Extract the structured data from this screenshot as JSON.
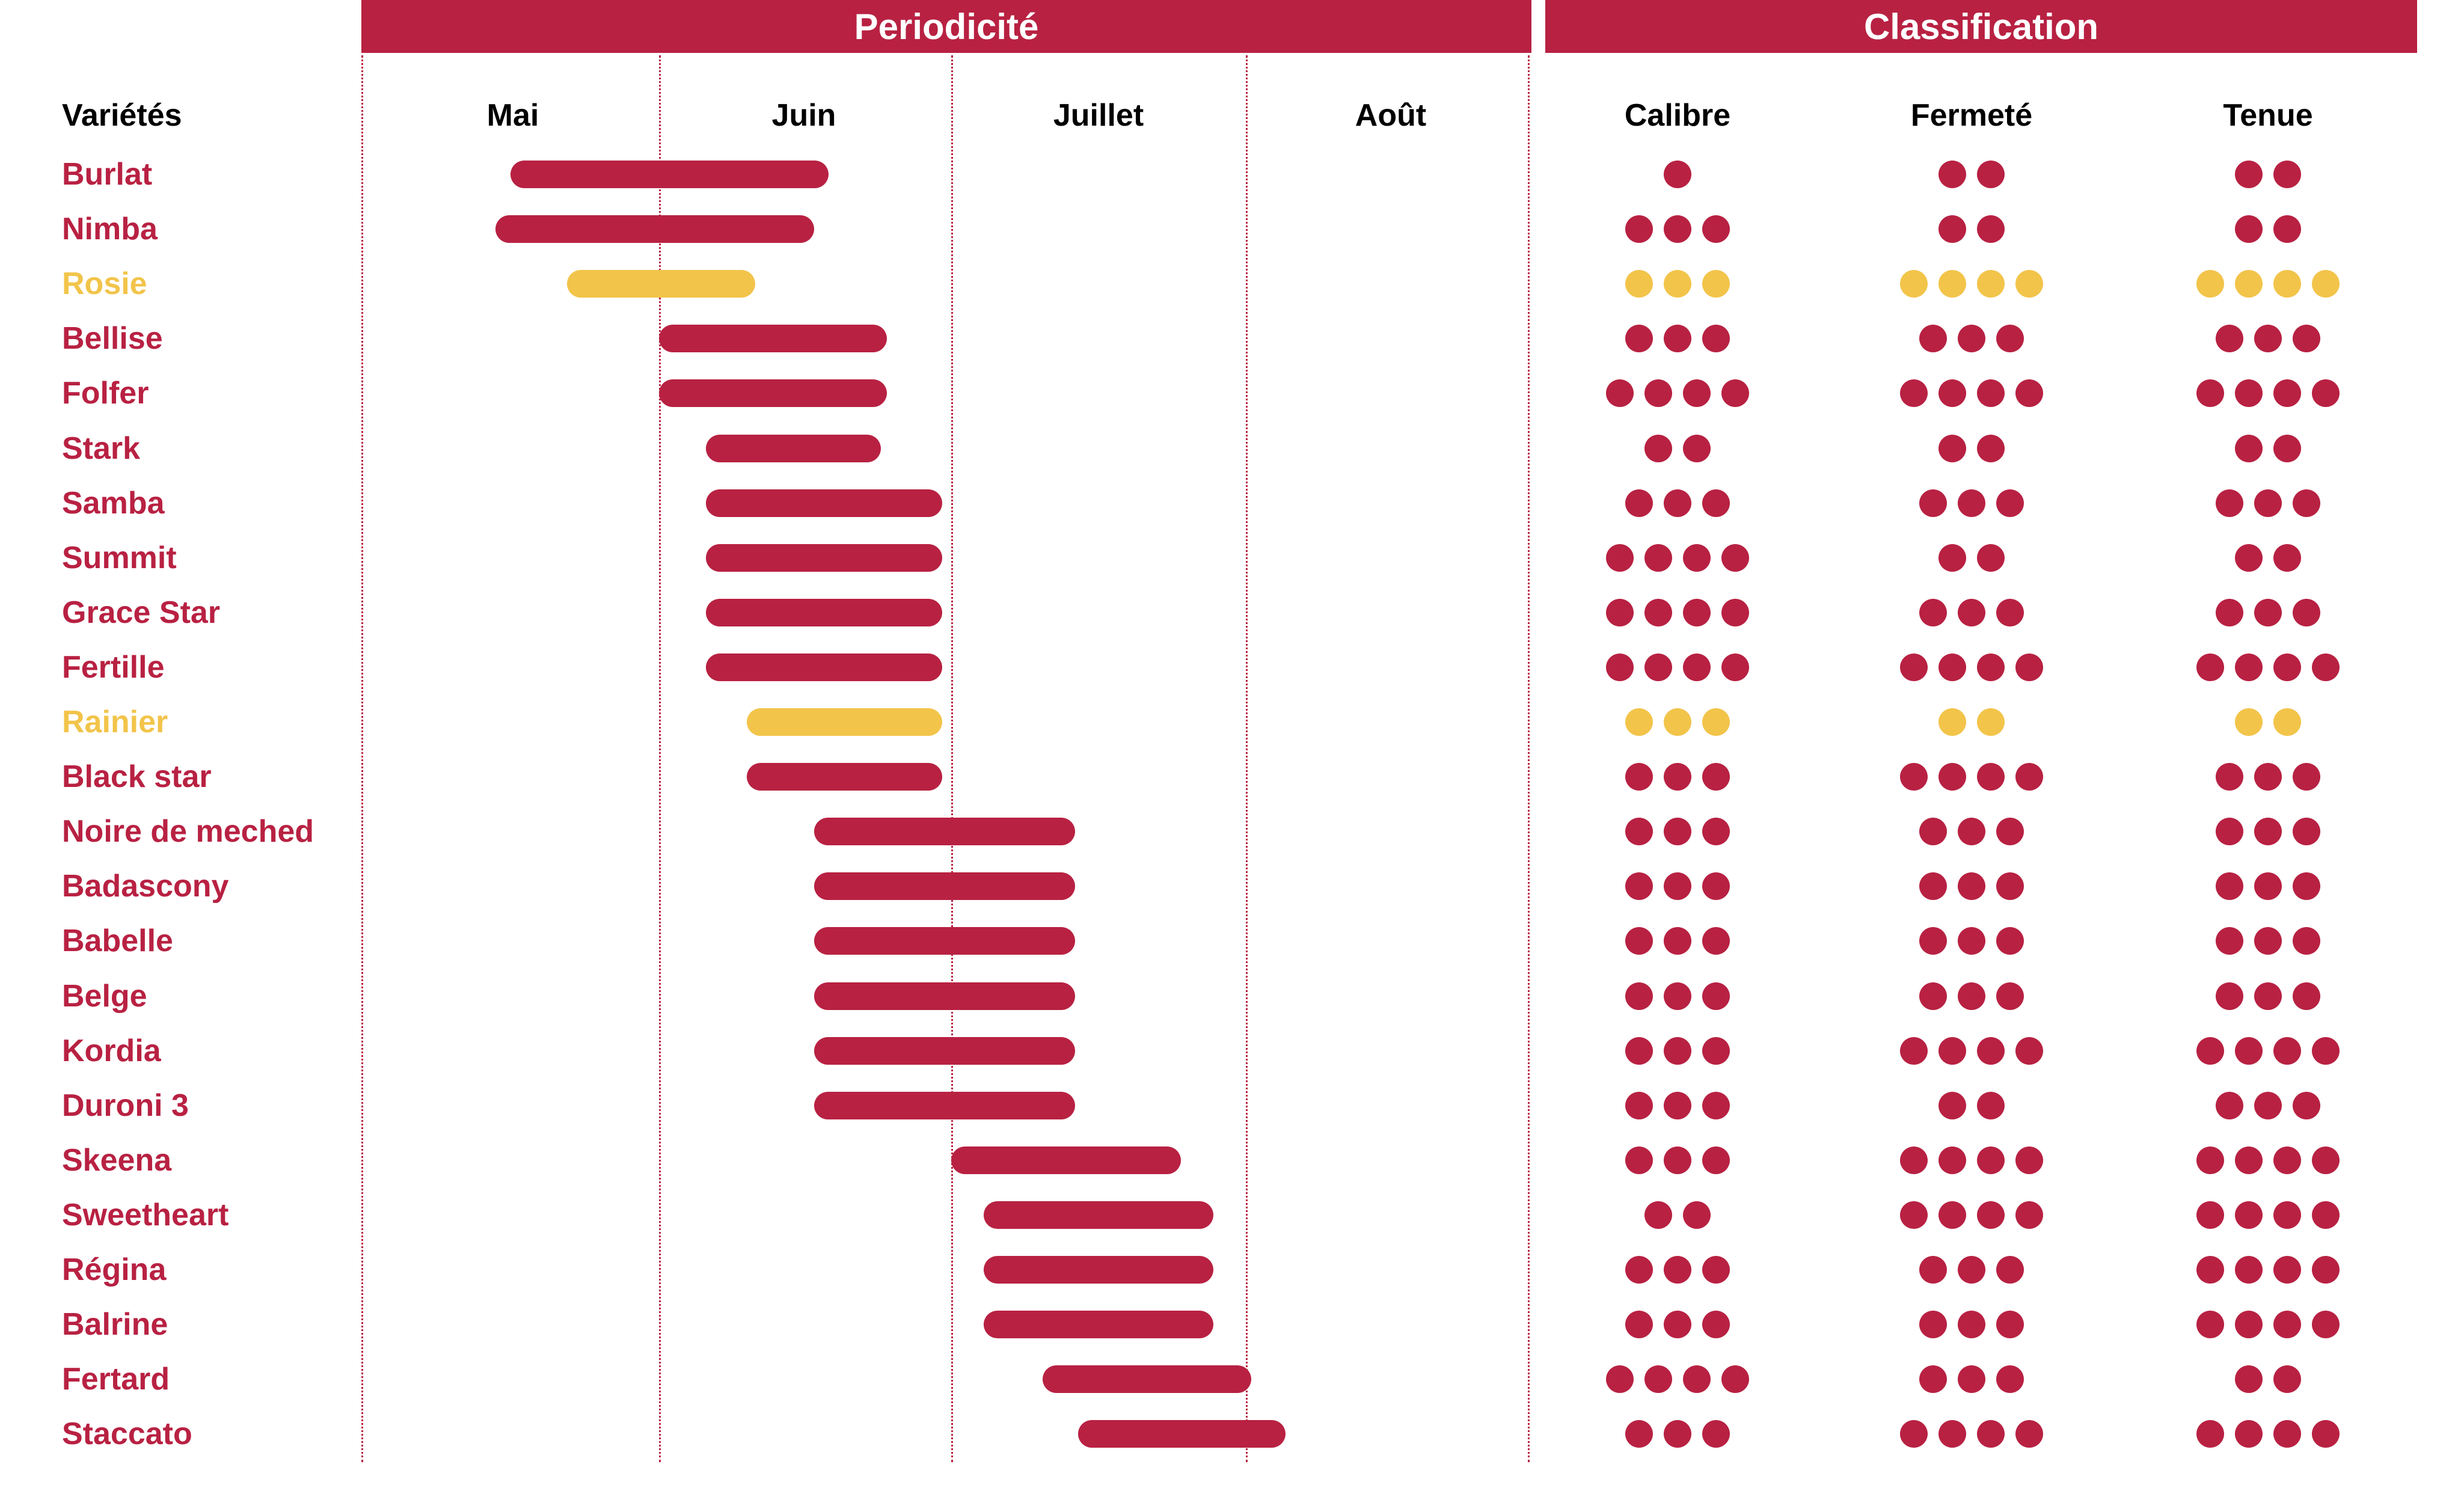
{
  "colors": {
    "red": "#b82142",
    "yellow": "#f2c44a"
  },
  "headers": {
    "periodicite": "Periodicité",
    "classification": "Classification"
  },
  "columns": {
    "varietes": "Variétés",
    "months": [
      "Mai",
      "Juin",
      "Juillet",
      "Août"
    ],
    "criteria": [
      "Calibre",
      "Fermeté",
      "Tenue"
    ]
  },
  "chart_data": {
    "type": "table",
    "period_unit": "month index (0 = Mai start, 1 = Juin start, 2 = Juillet start, 3 = Août start, 4 = Août end)",
    "rows": [
      {
        "name": "Burlat",
        "color": "red",
        "start": 0.5,
        "end": 1.58,
        "calibre": 1,
        "fermete": 2,
        "tenue": 2
      },
      {
        "name": "Nimba",
        "color": "red",
        "start": 0.45,
        "end": 1.53,
        "calibre": 3,
        "fermete": 2,
        "tenue": 2
      },
      {
        "name": "Rosie",
        "color": "yellow",
        "start": 0.69,
        "end": 1.33,
        "calibre": 3,
        "fermete": 4,
        "tenue": 4
      },
      {
        "name": "Bellise",
        "color": "red",
        "start": 1.0,
        "end": 1.78,
        "calibre": 3,
        "fermete": 3,
        "tenue": 3
      },
      {
        "name": "Folfer",
        "color": "red",
        "start": 1.0,
        "end": 1.78,
        "calibre": 4,
        "fermete": 4,
        "tenue": 4
      },
      {
        "name": "Stark",
        "color": "red",
        "start": 1.16,
        "end": 1.76,
        "calibre": 2,
        "fermete": 2,
        "tenue": 2
      },
      {
        "name": "Samba",
        "color": "red",
        "start": 1.16,
        "end": 1.97,
        "calibre": 3,
        "fermete": 3,
        "tenue": 3
      },
      {
        "name": "Summit",
        "color": "red",
        "start": 1.16,
        "end": 1.97,
        "calibre": 4,
        "fermete": 2,
        "tenue": 2
      },
      {
        "name": "Grace Star",
        "color": "red",
        "start": 1.16,
        "end": 1.97,
        "calibre": 4,
        "fermete": 3,
        "tenue": 3
      },
      {
        "name": "Fertille",
        "color": "red",
        "start": 1.16,
        "end": 1.97,
        "calibre": 4,
        "fermete": 4,
        "tenue": 4
      },
      {
        "name": "Rainier",
        "color": "yellow",
        "start": 1.3,
        "end": 1.97,
        "calibre": 3,
        "fermete": 2,
        "tenue": 2
      },
      {
        "name": "Black star",
        "color": "red",
        "start": 1.3,
        "end": 1.97,
        "calibre": 3,
        "fermete": 4,
        "tenue": 3
      },
      {
        "name": "Noire de meched",
        "color": "red",
        "start": 1.53,
        "end": 2.42,
        "calibre": 3,
        "fermete": 3,
        "tenue": 3
      },
      {
        "name": "Badascony",
        "color": "red",
        "start": 1.53,
        "end": 2.42,
        "calibre": 3,
        "fermete": 3,
        "tenue": 3
      },
      {
        "name": "Babelle",
        "color": "red",
        "start": 1.53,
        "end": 2.42,
        "calibre": 3,
        "fermete": 3,
        "tenue": 3
      },
      {
        "name": "Belge",
        "color": "red",
        "start": 1.53,
        "end": 2.42,
        "calibre": 3,
        "fermete": 3,
        "tenue": 3
      },
      {
        "name": "Kordia",
        "color": "red",
        "start": 1.53,
        "end": 2.42,
        "calibre": 3,
        "fermete": 4,
        "tenue": 4
      },
      {
        "name": "Duroni 3",
        "color": "red",
        "start": 1.53,
        "end": 2.42,
        "calibre": 3,
        "fermete": 2,
        "tenue": 3
      },
      {
        "name": "Skeena",
        "color": "red",
        "start": 2.0,
        "end": 2.78,
        "calibre": 3,
        "fermete": 4,
        "tenue": 4
      },
      {
        "name": "Sweetheart",
        "color": "red",
        "start": 2.11,
        "end": 2.89,
        "calibre": 2,
        "fermete": 4,
        "tenue": 4
      },
      {
        "name": "Régina",
        "color": "red",
        "start": 2.11,
        "end": 2.89,
        "calibre": 3,
        "fermete": 3,
        "tenue": 4
      },
      {
        "name": "Balrine",
        "color": "red",
        "start": 2.11,
        "end": 2.89,
        "calibre": 3,
        "fermete": 3,
        "tenue": 4
      },
      {
        "name": "Fertard",
        "color": "red",
        "start": 2.31,
        "end": 3.02,
        "calibre": 4,
        "fermete": 3,
        "tenue": 2
      },
      {
        "name": "Staccato",
        "color": "red",
        "start": 2.43,
        "end": 3.14,
        "calibre": 3,
        "fermete": 4,
        "tenue": 4
      }
    ]
  }
}
